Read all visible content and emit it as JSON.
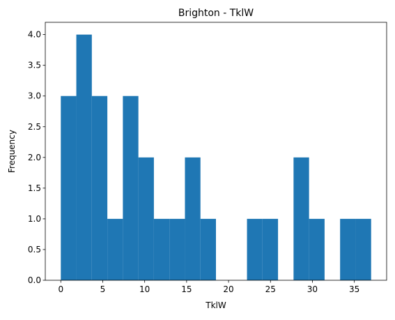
{
  "chart_data": {
    "type": "histogram",
    "title": "Brighton - TklW",
    "x_label": "TklW",
    "y_label": "Frequency",
    "bins": [
      0,
      1.85,
      3.7,
      5.55,
      7.4,
      9.25,
      11.1,
      12.95,
      14.8,
      16.65,
      18.5,
      20.35,
      22.2,
      24.05,
      25.9,
      27.75,
      29.6,
      31.45,
      33.3,
      35.15,
      37
    ],
    "values": [
      3,
      4,
      3,
      1,
      3,
      2,
      1,
      1,
      2,
      1,
      0,
      0,
      1,
      1,
      0,
      2,
      1,
      0,
      1,
      1
    ],
    "color": "#1f77b4",
    "xlim": [
      -1.85,
      38.85
    ],
    "xticks": [
      0,
      5,
      10,
      15,
      20,
      25,
      30,
      35
    ],
    "ylim": [
      0,
      4.2
    ],
    "yticks": [
      {
        "value": 0,
        "label": "0.0"
      },
      {
        "value": 0.5,
        "label": "0.5"
      },
      {
        "value": 1,
        "label": "1.0"
      },
      {
        "value": 1.5,
        "label": "1.5"
      },
      {
        "value": 2,
        "label": "2.0"
      },
      {
        "value": 2.5,
        "label": "2.5"
      },
      {
        "value": 3,
        "label": "3.0"
      },
      {
        "value": 3.5,
        "label": "3.5"
      },
      {
        "value": 4,
        "label": "4.0"
      }
    ]
  }
}
